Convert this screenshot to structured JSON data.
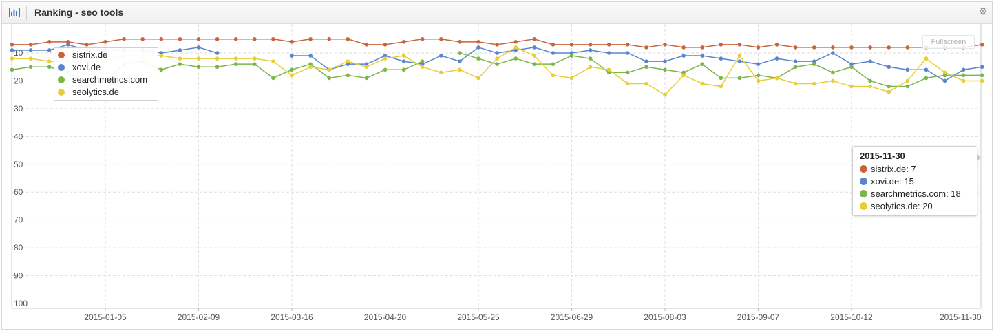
{
  "header": {
    "title": "Ranking - seo tools",
    "chart_icon": "bar-chart-icon",
    "gear_icon": "gear-icon"
  },
  "fullscreen_label": "Fullscreen",
  "tooltip": {
    "date": "2015-11-30",
    "rows": [
      {
        "label": "sistrix.de: 7",
        "color": "#c8643b"
      },
      {
        "label": "xovi.de: 15",
        "color": "#5a85cc"
      },
      {
        "label": "searchmetrics.com: 18",
        "color": "#7ab648"
      },
      {
        "label": "seolytics.de: 20",
        "color": "#e8cd37"
      }
    ]
  },
  "chart_data": {
    "type": "line",
    "title": "Ranking - seo tools",
    "xlabel": "",
    "ylabel": "",
    "y_reversed": true,
    "ylim": [
      1,
      100
    ],
    "y_ticks": [
      "10",
      "20",
      "30",
      "40",
      "50",
      "60",
      "70",
      "80",
      "90",
      "100"
    ],
    "x_ticks": [
      "2015-01-05",
      "2015-02-09",
      "2015-03-16",
      "2015-04-20",
      "2015-05-25",
      "2015-06-29",
      "2015-08-03",
      "2015-09-07",
      "2015-10-12",
      "2015-11-30"
    ],
    "grid": true,
    "legend": "top-left",
    "x_first": "2014-12-01",
    "x_step_days": 7,
    "series": [
      {
        "name": "sistrix.de",
        "color": "#c8643b",
        "values": [
          7,
          7,
          6,
          6,
          7,
          6,
          5,
          5,
          5,
          5,
          5,
          5,
          5,
          5,
          5,
          6,
          5,
          5,
          5,
          7,
          7,
          6,
          5,
          5,
          6,
          6,
          7,
          6,
          5,
          7,
          7,
          7,
          7,
          7,
          8,
          7,
          8,
          8,
          7,
          7,
          8,
          7,
          8,
          8,
          8,
          8,
          8,
          8,
          8,
          8,
          8,
          8,
          7
        ]
      },
      {
        "name": "xovi.de",
        "color": "#5a85cc",
        "values": [
          9,
          9,
          9,
          7,
          9,
          9,
          9,
          9,
          10,
          9,
          8,
          10,
          null,
          null,
          null,
          11,
          11,
          16,
          14,
          14,
          11,
          13,
          14,
          11,
          13,
          8,
          10,
          9,
          8,
          10,
          10,
          9,
          10,
          10,
          13,
          13,
          11,
          11,
          12,
          13,
          14,
          12,
          13,
          13,
          10,
          14,
          13,
          15,
          16,
          16,
          20,
          16,
          15
        ]
      },
      {
        "name": "searchmetrics.com",
        "color": "#7ab648",
        "values": [
          16,
          15,
          15,
          17,
          20,
          20,
          14,
          13,
          16,
          14,
          15,
          15,
          14,
          14,
          19,
          16,
          14,
          19,
          18,
          19,
          16,
          16,
          13,
          null,
          10,
          12,
          14,
          12,
          14,
          14,
          11,
          12,
          17,
          17,
          15,
          16,
          17,
          14,
          19,
          19,
          18,
          19,
          15,
          14,
          17,
          15,
          20,
          22,
          22,
          19,
          18,
          18,
          18
        ]
      },
      {
        "name": "seolytics.de",
        "color": "#e8cd37",
        "values": [
          12,
          12,
          13,
          13,
          13,
          13,
          11,
          11,
          11,
          12,
          12,
          12,
          12,
          12,
          13,
          18,
          15,
          16,
          13,
          15,
          12,
          11,
          15,
          17,
          16,
          19,
          12,
          8,
          11,
          18,
          19,
          15,
          16,
          21,
          21,
          25,
          18,
          21,
          22,
          11,
          20,
          19,
          21,
          21,
          20,
          22,
          22,
          24,
          20,
          12,
          17,
          20,
          20
        ]
      }
    ]
  }
}
